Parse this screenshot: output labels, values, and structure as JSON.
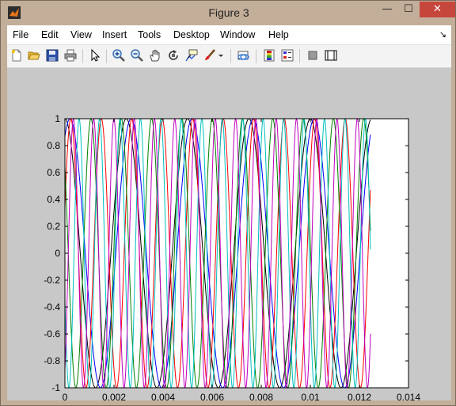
{
  "window": {
    "title": "Figure 3",
    "minimize": "—",
    "maximize": "☐",
    "close": "✕"
  },
  "menu": {
    "items": [
      {
        "label": "File"
      },
      {
        "label": "Edit"
      },
      {
        "label": "View"
      },
      {
        "label": "Insert"
      },
      {
        "label": "Tools"
      },
      {
        "label": "Desktop"
      },
      {
        "label": "Window"
      },
      {
        "label": "Help"
      }
    ],
    "dock_glyph": "↘"
  },
  "toolbar": {
    "icons": [
      "new-figure-icon",
      "open-file-icon",
      "save-icon",
      "print-icon",
      "edit-plot-arrow-icon",
      "zoom-in-icon",
      "zoom-out-icon",
      "pan-hand-icon",
      "rotate-3d-icon",
      "data-cursor-icon",
      "brush-icon",
      "brush-dropdown-icon",
      "link-plot-icon",
      "insert-colorbar-icon",
      "insert-legend-icon",
      "hide-plot-tools-icon",
      "show-plot-tools-icon"
    ]
  },
  "chart_data": {
    "type": "line",
    "title": "",
    "xlabel": "",
    "ylabel": "",
    "xlim": [
      0,
      0.014
    ],
    "ylim": [
      -1,
      1
    ],
    "xticks": [
      "0",
      "0.002",
      "0.004",
      "0.006",
      "0.008",
      "0.01",
      "0.012",
      "0.014"
    ],
    "yticks": [
      "-1",
      "-0.8",
      "-0.6",
      "-0.4",
      "-0.2",
      "0",
      "0.2",
      "0.4",
      "0.6",
      "0.8",
      "1"
    ],
    "grid": false,
    "legend": "none",
    "x_end": 0.01245,
    "series": [
      {
        "color": "#000000",
        "frequency_hz": 400,
        "phase_deg": 90
      },
      {
        "color": "#0000ff",
        "frequency_hz": 402,
        "phase_deg": 60
      },
      {
        "color": "#ff0000",
        "frequency_hz": 805,
        "phase_deg": 20
      },
      {
        "color": "#008000",
        "frequency_hz": 810,
        "phase_deg": 140
      },
      {
        "color": "#00bfbf",
        "frequency_hz": 1200,
        "phase_deg": 200
      },
      {
        "color": "#bf00bf",
        "frequency_hz": 1210,
        "phase_deg": 300
      }
    ]
  }
}
